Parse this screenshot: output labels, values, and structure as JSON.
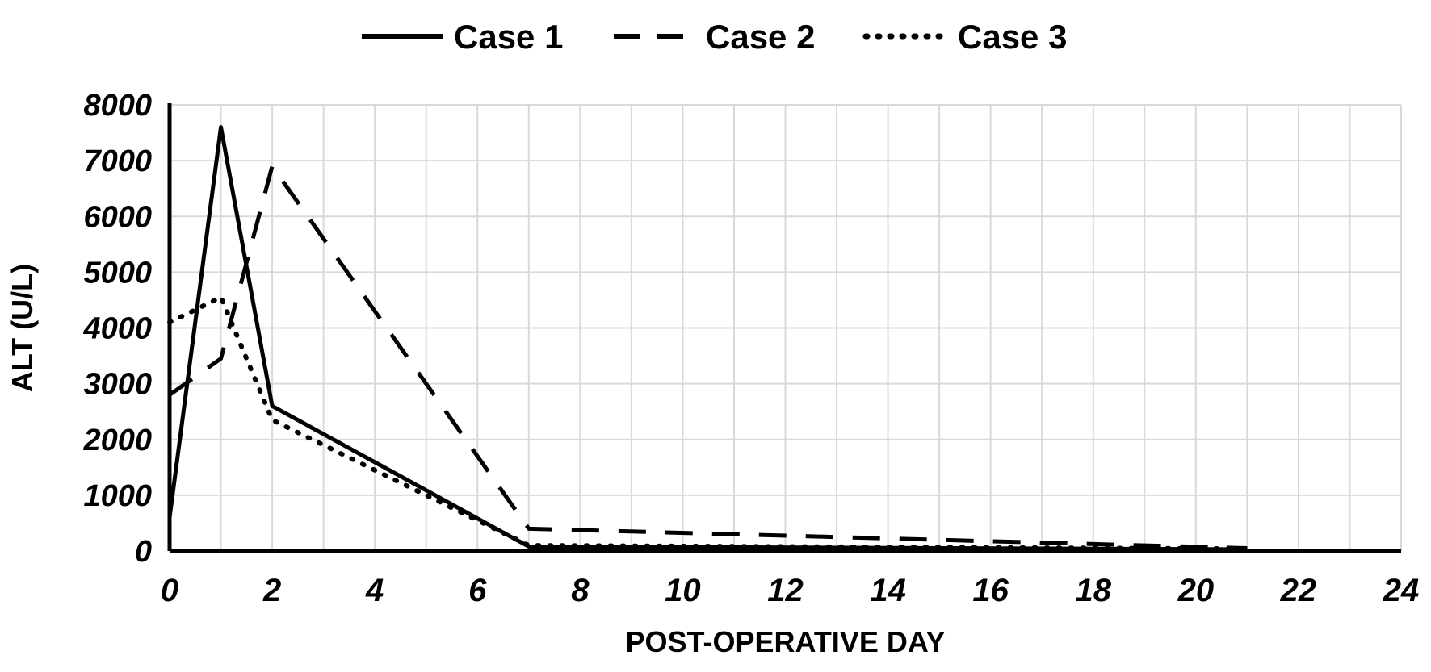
{
  "chart_data": {
    "type": "line",
    "title": "",
    "xlabel": "POST-OPERATIVE DAY",
    "ylabel": "ALT (U/L)",
    "xlim": [
      0,
      24
    ],
    "ylim": [
      0,
      8000
    ],
    "x_ticks": [
      0,
      2,
      4,
      6,
      8,
      10,
      12,
      14,
      16,
      18,
      20,
      22,
      24
    ],
    "y_ticks": [
      0,
      1000,
      2000,
      3000,
      4000,
      5000,
      6000,
      7000,
      8000
    ],
    "grid": true,
    "legend_position": "top-center",
    "series": [
      {
        "name": "Case 1",
        "line_style": "solid",
        "color": "#000000",
        "x": [
          0,
          1,
          2,
          7,
          21
        ],
        "y": [
          600,
          7600,
          2600,
          80,
          30
        ]
      },
      {
        "name": "Case 2",
        "line_style": "dashed",
        "color": "#000000",
        "x": [
          0,
          1,
          2,
          7,
          21
        ],
        "y": [
          2800,
          3450,
          6900,
          400,
          50
        ]
      },
      {
        "name": "Case 3",
        "line_style": "dotted",
        "color": "#000000",
        "x": [
          0,
          1,
          2,
          7,
          21
        ],
        "y": [
          4100,
          4550,
          2350,
          100,
          40
        ]
      }
    ]
  }
}
